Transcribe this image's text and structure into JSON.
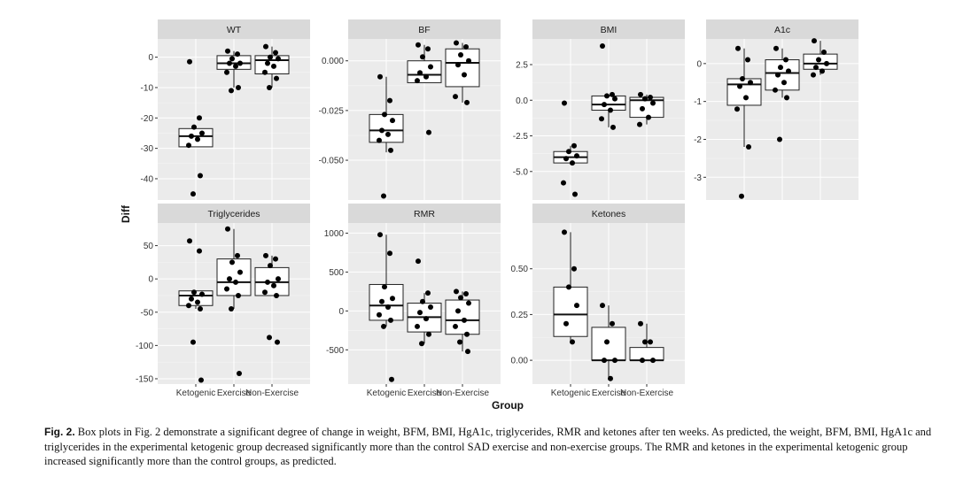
{
  "caption": {
    "label": "Fig. 2.",
    "text": "Box plots in Fig. 2 demonstrate a significant degree of change in weight, BFM, BMI, HgA1c, triglycerides, RMR and ketones after ten weeks. As predicted, the weight, BFM, BMI, HgA1c and triglycerides in the experimental ketogenic group decreased significantly more than the control SAD exercise and non-exercise groups. The RMR and ketones in the experimental ketogenic group increased significantly more than the control groups, as predicted."
  },
  "chart_data": {
    "type": "box",
    "xlabel": "Group",
    "ylabel": "Diff",
    "categories": [
      "Ketogenic",
      "Exercise",
      "Non-Exercise"
    ],
    "grid": true,
    "panels": [
      {
        "title": "WT",
        "ylim": [
          -47,
          6
        ],
        "yticks": [
          0,
          -10,
          -20,
          -30,
          -40
        ],
        "tick_labels": [
          "0",
          "-10",
          "-20",
          "-30",
          "-40"
        ],
        "groups": [
          {
            "q1": -29.5,
            "median": -26,
            "q3": -23.5,
            "whisker_low": -29.5,
            "whisker_high": -23.5,
            "points": [
              -1.5,
              -20,
              -23,
              -25,
              -26,
              -27,
              -29,
              -39,
              -45
            ]
          },
          {
            "q1": -4,
            "median": -2,
            "q3": 0.5,
            "whisker_low": -10,
            "whisker_high": 2,
            "points": [
              2,
              1,
              -0.5,
              -2,
              -2,
              -3,
              -5,
              -10,
              -11
            ]
          },
          {
            "q1": -5.5,
            "median": -1,
            "q3": 0.5,
            "whisker_low": -10,
            "whisker_high": 3.5,
            "points": [
              3.5,
              1.5,
              0,
              -0.5,
              -2,
              -3,
              -5,
              -7,
              -10
            ]
          }
        ]
      },
      {
        "title": "BF",
        "ylim": [
          -0.07,
          0.011
        ],
        "yticks": [
          0,
          -0.025,
          -0.05
        ],
        "tick_labels": [
          "0.000",
          "-0.025",
          "-0.050"
        ],
        "groups": [
          {
            "q1": -0.041,
            "median": -0.035,
            "q3": -0.027,
            "whisker_low": -0.046,
            "whisker_high": -0.008,
            "points": [
              -0.008,
              -0.02,
              -0.027,
              -0.03,
              -0.035,
              -0.037,
              -0.04,
              -0.045,
              -0.068
            ]
          },
          {
            "q1": -0.011,
            "median": -0.007,
            "q3": 0.0,
            "whisker_low": -0.011,
            "whisker_high": 0.008,
            "points": [
              0.008,
              0.006,
              0.002,
              -0.003,
              -0.006,
              -0.008,
              -0.01,
              -0.036
            ]
          },
          {
            "q1": -0.013,
            "median": -0.001,
            "q3": 0.006,
            "whisker_low": -0.021,
            "whisker_high": 0.009,
            "points": [
              0.009,
              0.007,
              0.003,
              0.0,
              -0.002,
              -0.007,
              -0.018,
              -0.021
            ]
          }
        ]
      },
      {
        "title": "BMI",
        "ylim": [
          -7,
          4.3
        ],
        "yticks": [
          2.5,
          0,
          -2.5,
          -5
        ],
        "tick_labels": [
          "2.5",
          "0.0",
          "-2.5",
          "-5.0"
        ],
        "groups": [
          {
            "q1": -4.4,
            "median": -4.0,
            "q3": -3.6,
            "whisker_low": -4.4,
            "whisker_high": -3.2,
            "points": [
              -0.2,
              -3.2,
              -3.6,
              -3.9,
              -4.1,
              -4.4,
              -5.8,
              -6.6
            ]
          },
          {
            "q1": -0.7,
            "median": -0.3,
            "q3": 0.3,
            "whisker_low": -1.9,
            "whisker_high": 0.4,
            "points": [
              3.8,
              0.4,
              0.3,
              0.1,
              -0.3,
              -0.7,
              -1.3,
              -1.9
            ]
          },
          {
            "q1": -1.2,
            "median": 0.0,
            "q3": 0.2,
            "whisker_low": -1.7,
            "whisker_high": 0.4,
            "points": [
              0.4,
              0.2,
              0.1,
              -0.2,
              -0.6,
              -1.2,
              -1.7
            ]
          }
        ]
      },
      {
        "title": "A1c",
        "ylim": [
          -3.6,
          0.65
        ],
        "yticks": [
          0,
          -1,
          -2,
          -3
        ],
        "tick_labels": [
          "0",
          "-1",
          "-2",
          "-3"
        ],
        "groups": [
          {
            "q1": -1.1,
            "median": -0.55,
            "q3": -0.4,
            "whisker_low": -2.2,
            "whisker_high": 0.4,
            "points": [
              0.4,
              0.1,
              -0.4,
              -0.5,
              -0.6,
              -0.9,
              -1.2,
              -2.2,
              -3.5
            ]
          },
          {
            "q1": -0.7,
            "median": -0.25,
            "q3": 0.1,
            "whisker_low": -0.9,
            "whisker_high": 0.4,
            "points": [
              0.4,
              0.1,
              -0.1,
              -0.2,
              -0.3,
              -0.5,
              -0.7,
              -0.9,
              -2.0
            ]
          },
          {
            "q1": -0.15,
            "median": 0.0,
            "q3": 0.25,
            "whisker_low": -0.3,
            "whisker_high": 0.6,
            "points": [
              0.6,
              0.3,
              0.1,
              0.0,
              -0.1,
              -0.2,
              -0.3
            ]
          }
        ]
      },
      {
        "title": "Triglycerides",
        "ylim": [
          -158,
          84
        ],
        "yticks": [
          50,
          0,
          -50,
          -100,
          -150
        ],
        "tick_labels": [
          "50",
          "0",
          "-50",
          "-100",
          "-150"
        ],
        "groups": [
          {
            "q1": -40,
            "median": -25,
            "q3": -18,
            "whisker_low": -45,
            "whisker_high": -18,
            "points": [
              57,
              42,
              -20,
              -23,
              -30,
              -35,
              -40,
              -45,
              -95,
              -152
            ]
          },
          {
            "q1": -25,
            "median": -5,
            "q3": 30,
            "whisker_low": -45,
            "whisker_high": 75,
            "points": [
              75,
              35,
              25,
              10,
              0,
              -5,
              -15,
              -25,
              -45,
              -142
            ]
          },
          {
            "q1": -25,
            "median": -5,
            "q3": 17,
            "whisker_low": -25,
            "whisker_high": 35,
            "points": [
              35,
              30,
              20,
              0,
              -5,
              -10,
              -20,
              -25,
              -88,
              -95
            ]
          }
        ]
      },
      {
        "title": "RMR",
        "ylim": [
          -940,
          1130
        ],
        "yticks": [
          1000,
          500,
          0,
          -500
        ],
        "tick_labels": [
          "1000",
          "500",
          "0",
          "-500"
        ],
        "groups": [
          {
            "q1": -120,
            "median": 70,
            "q3": 340,
            "whisker_low": -200,
            "whisker_high": 980,
            "points": [
              980,
              740,
              310,
              160,
              120,
              50,
              -50,
              -120,
              -200,
              -880
            ]
          },
          {
            "q1": -270,
            "median": -80,
            "q3": 100,
            "whisker_low": -420,
            "whisker_high": 230,
            "points": [
              640,
              230,
              120,
              50,
              -20,
              -100,
              -200,
              -300,
              -420
            ]
          },
          {
            "q1": -300,
            "median": -120,
            "q3": 140,
            "whisker_low": -520,
            "whisker_high": 250,
            "points": [
              250,
              220,
              170,
              100,
              0,
              -120,
              -200,
              -300,
              -400,
              -520
            ]
          }
        ]
      },
      {
        "title": "Ketones",
        "ylim": [
          -0.13,
          0.75
        ],
        "yticks": [
          0.5,
          0.25,
          0
        ],
        "tick_labels": [
          "0.50",
          "0.25",
          "0.00"
        ],
        "groups": [
          {
            "q1": 0.13,
            "median": 0.25,
            "q3": 0.4,
            "whisker_low": 0.1,
            "whisker_high": 0.7,
            "points": [
              0.7,
              0.5,
              0.4,
              0.3,
              0.2,
              0.1
            ]
          },
          {
            "q1": 0.0,
            "median": 0.0,
            "q3": 0.18,
            "whisker_low": -0.1,
            "whisker_high": 0.3,
            "points": [
              0.3,
              0.2,
              0.1,
              0.0,
              0.0,
              -0.1
            ]
          },
          {
            "q1": 0.0,
            "median": 0.0,
            "q3": 0.07,
            "whisker_low": 0.0,
            "whisker_high": 0.2,
            "points": [
              0.2,
              0.1,
              0.1,
              0.0,
              0.0
            ]
          }
        ]
      }
    ]
  }
}
